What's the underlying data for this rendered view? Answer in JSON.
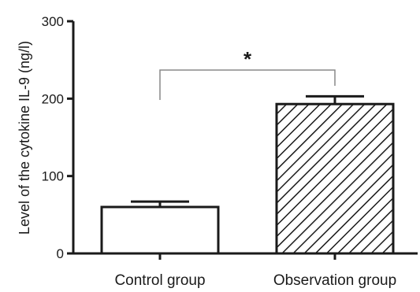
{
  "chart_data": {
    "type": "bar",
    "title": "",
    "xlabel": "",
    "ylabel": "Level of the cytokine IL-9 (ng/l)",
    "ylim": [
      0,
      300
    ],
    "yticks": [
      "0",
      "100",
      "200",
      "300"
    ],
    "grid": false,
    "legend": "none",
    "categories": [
      "Control group",
      "Observation group"
    ],
    "values": [
      60,
      193
    ],
    "errors": [
      7,
      10
    ],
    "fills": [
      "none",
      "diagonal-hatch"
    ],
    "colors": {
      "bar_stroke": "#1a1a1a",
      "bar_fill": "#ffffff",
      "axis": "#1a1a1a",
      "bracket": "#888888"
    },
    "annotations": [
      {
        "type": "significance-bracket",
        "label": "*",
        "between": [
          "Control group",
          "Observation group"
        ]
      }
    ]
  }
}
